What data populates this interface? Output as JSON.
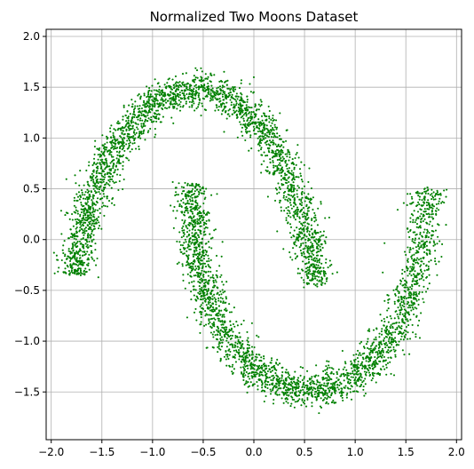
{
  "chart_data": {
    "type": "scatter",
    "title": "Normalized Two Moons Dataset",
    "xlabel": "",
    "ylabel": "",
    "xlim": [
      -2.05,
      2.05
    ],
    "ylim": [
      -1.97,
      2.07
    ],
    "x_ticks": [
      -2.0,
      -1.5,
      -1.0,
      -0.5,
      0.0,
      0.5,
      1.0,
      1.5,
      2.0
    ],
    "x_tick_labels": [
      "−2.0",
      "−1.5",
      "−1.0",
      "−0.5",
      "0.0",
      "0.5",
      "1.0",
      "1.5",
      "2.0"
    ],
    "y_ticks": [
      -1.5,
      -1.0,
      -0.5,
      0.0,
      0.5,
      1.0,
      1.5,
      2.0
    ],
    "y_tick_labels": [
      "−1.5",
      "−1.0",
      "−0.5",
      "0.0",
      "0.5",
      "1.0",
      "1.5",
      "2.0"
    ],
    "grid": true,
    "legend": "none",
    "marker_color": "#008000",
    "series": [
      {
        "name": "",
        "description_points": "upper moon arc (approximate centerline samples)",
        "points": [
          [
            -1.75,
            -0.35
          ],
          [
            -1.73,
            -0.1
          ],
          [
            -1.68,
            0.15
          ],
          [
            -1.6,
            0.4
          ],
          [
            -1.5,
            0.65
          ],
          [
            -1.38,
            0.88
          ],
          [
            -1.22,
            1.1
          ],
          [
            -1.05,
            1.27
          ],
          [
            -0.85,
            1.41
          ],
          [
            -0.62,
            1.48
          ],
          [
            -0.4,
            1.46
          ],
          [
            -0.2,
            1.36
          ],
          [
            0.0,
            1.2
          ],
          [
            0.15,
            1.0
          ],
          [
            0.28,
            0.75
          ],
          [
            0.4,
            0.45
          ],
          [
            0.5,
            0.15
          ],
          [
            0.58,
            -0.15
          ],
          [
            0.6,
            -0.45
          ]
        ]
      },
      {
        "name": "",
        "description_points": "lower moon arc (approximate centerline samples)",
        "points": [
          [
            -0.58,
            0.55
          ],
          [
            -0.6,
            0.25
          ],
          [
            -0.58,
            -0.05
          ],
          [
            -0.52,
            -0.35
          ],
          [
            -0.42,
            -0.65
          ],
          [
            -0.3,
            -0.92
          ],
          [
            -0.12,
            -1.17
          ],
          [
            0.08,
            -1.35
          ],
          [
            0.3,
            -1.45
          ],
          [
            0.55,
            -1.5
          ],
          [
            0.8,
            -1.45
          ],
          [
            1.05,
            -1.3
          ],
          [
            1.25,
            -1.1
          ],
          [
            1.42,
            -0.82
          ],
          [
            1.55,
            -0.5
          ],
          [
            1.65,
            -0.15
          ],
          [
            1.7,
            0.2
          ],
          [
            1.72,
            0.5
          ]
        ]
      }
    ]
  }
}
